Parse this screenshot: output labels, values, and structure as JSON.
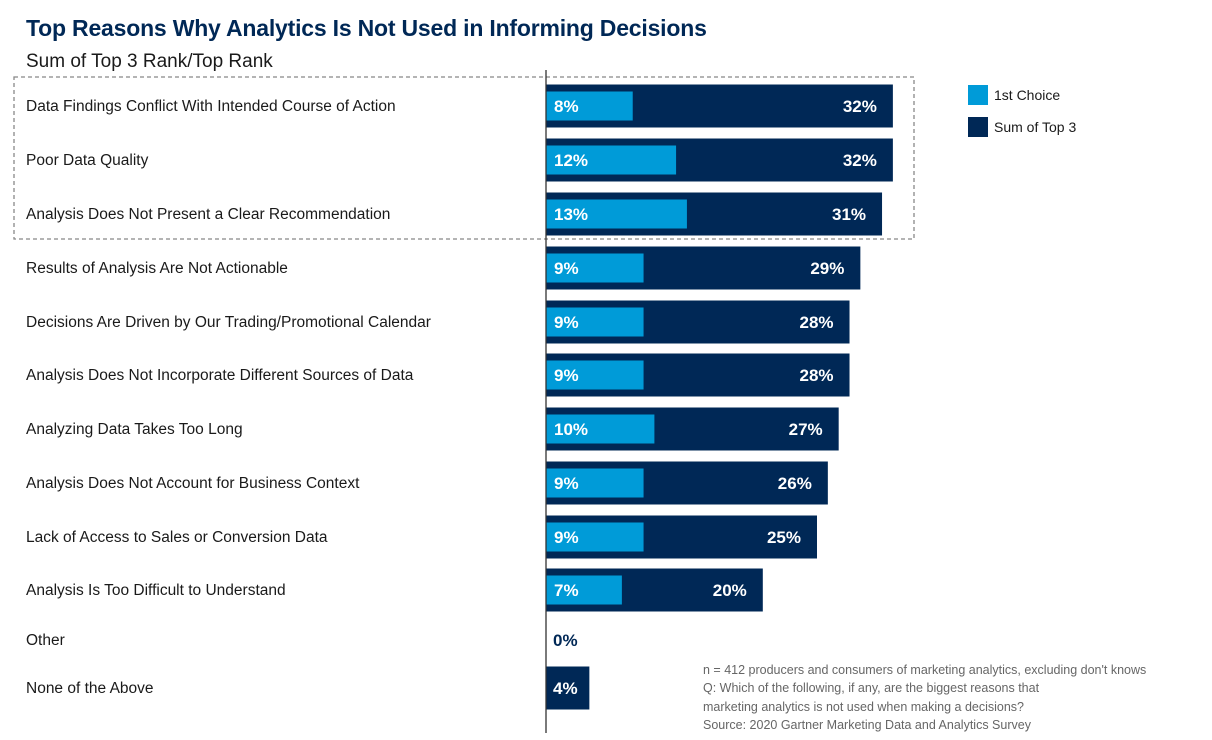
{
  "title": "Top Reasons Why Analytics Is Not Used in Informing Decisions",
  "subtitle": "Sum of Top 3 Rank/Top Rank",
  "legend": [
    {
      "label": "1st Choice",
      "color": "#009bd8"
    },
    {
      "label": "Sum of Top 3",
      "color": "#002856"
    }
  ],
  "colors": {
    "first_choice": "#009bd8",
    "top3": "#002856",
    "axis": "#333333",
    "highlight_border": "#888888"
  },
  "notes": [
    "n = 412 producers and consumers of marketing analytics, excluding don't knows",
    "Q: Which of the following, if any, are the biggest reasons that",
    "marketing analytics is not used when making a decisions?",
    "Source: 2020 Gartner Marketing Data and Analytics Survey"
  ],
  "chart_data": {
    "type": "bar",
    "orientation": "horizontal",
    "categories": [
      "Data Findings Conflict With Intended Course of Action",
      "Poor Data Quality",
      "Analysis Does Not Present a Clear Recommendation",
      "Results of Analysis Are Not Actionable",
      "Decisions Are Driven by Our Trading/Promotional Calendar",
      "Analysis Does Not Incorporate Different Sources of Data",
      "Analyzing Data Takes Too Long",
      "Analysis Does Not Account for Business Context",
      "Lack of Access to Sales or Conversion Data",
      "Analysis Is Too Difficult to Understand",
      "Other",
      "None of the Above"
    ],
    "series": [
      {
        "name": "1st Choice",
        "values": [
          8,
          12,
          13,
          9,
          9,
          9,
          10,
          9,
          9,
          7,
          null,
          null
        ]
      },
      {
        "name": "Sum of Top 3",
        "values": [
          32,
          32,
          31,
          29,
          28,
          28,
          27,
          26,
          25,
          20,
          0,
          4
        ]
      }
    ],
    "value_labels": {
      "first_choice": [
        "8%",
        "12%",
        "13%",
        "9%",
        "9%",
        "9%",
        "10%",
        "9%",
        "9%",
        "7%",
        "",
        ""
      ],
      "top3": [
        "32%",
        "32%",
        "31%",
        "29%",
        "28%",
        "28%",
        "27%",
        "26%",
        "25%",
        "20%",
        "0%",
        "4%"
      ]
    },
    "highlighted_categories": 3,
    "xlim": [
      0,
      32
    ],
    "unit": "%"
  }
}
